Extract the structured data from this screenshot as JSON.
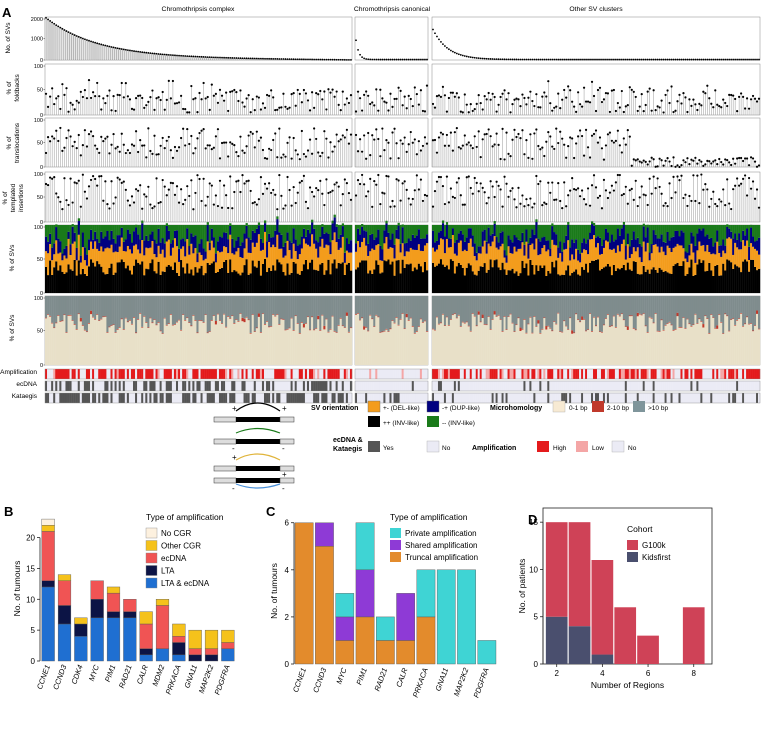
{
  "panels": {
    "A": "A",
    "B": "B",
    "C": "C",
    "D": "D"
  },
  "panelA": {
    "group_titles": [
      "Chromothripsis complex",
      "Chromothripsis canonical",
      "Other SV clusters"
    ],
    "row_labels": {
      "svs": [
        "No. of SVs"
      ],
      "foldbacks": [
        "% of",
        "foldbacks"
      ],
      "translocations": [
        "% of",
        "translocations"
      ],
      "templated": [
        "% of",
        "templated",
        "insertions"
      ],
      "orient": [
        "% of SVs"
      ],
      "microhom": [
        "% of SVs"
      ]
    },
    "svs_ticks": [
      "2000",
      "1000",
      "0"
    ],
    "pct_ticks": [
      "100",
      "50",
      "0"
    ],
    "track_labels": [
      "Amplification",
      "ecDNA",
      "Kataegis"
    ],
    "colors": {
      "del": "#f39c1c",
      "dup": "#000080",
      "tra": "#000000",
      "inv": "#1a7a1a",
      "mh_0_1": "#e8e0c8",
      "mh_2_10": "#c0392b",
      "mh_10": "#7f8c8d",
      "amp_high": "#e41a1c",
      "amp_low": "#f4a6a6",
      "amp_no": "#ebebf5",
      "yes": "#555555",
      "no": "#ebebf5"
    }
  },
  "legendA": {
    "sv_orientation_title": "SV orientation",
    "orientation_items": [
      "+- (DEL-like)",
      "-+ (DUP-like)",
      "++ (INV-like)",
      "-- (INV-like)"
    ],
    "microhomology_title": "Microhomology",
    "microhomology_items": [
      "0-1 bp",
      "2-10 bp",
      ">10 bp"
    ],
    "ecdna_title": [
      "ecDNA &",
      "Kataegis"
    ],
    "ecdna_items": [
      "Yes",
      "No"
    ],
    "amplification_title": "Amplification",
    "amplification_items": [
      "High",
      "Low",
      "No"
    ],
    "schematic_signs": [
      "+",
      "+",
      "-",
      "-",
      "+",
      "+",
      "-",
      "-"
    ]
  },
  "chart_data": [
    {
      "panel": "B",
      "type": "bar",
      "stacked": true,
      "categories": [
        "CCNE1",
        "CCND3",
        "CDK4",
        "MYC",
        "PIM1",
        "RAD21",
        "CALR",
        "MDM2",
        "PRKACA",
        "GNA11",
        "MAP2K2",
        "PDGFRA"
      ],
      "series": [
        {
          "name": "LTA & ecDNA",
          "color": "#1f6fd1",
          "values": [
            12,
            6,
            4,
            7,
            7,
            7,
            1,
            2,
            1,
            0,
            0,
            2
          ]
        },
        {
          "name": "LTA",
          "color": "#0c1445",
          "values": [
            1,
            3,
            2,
            3,
            1,
            1,
            1,
            0,
            2,
            1,
            1,
            0
          ]
        },
        {
          "name": "ecDNA",
          "color": "#f05454",
          "values": [
            8,
            4,
            0,
            3,
            3,
            2,
            4,
            7,
            1,
            1,
            1,
            1
          ]
        },
        {
          "name": "Other CGR",
          "color": "#f5c21b",
          "values": [
            1,
            1,
            1,
            0,
            1,
            0,
            2,
            1,
            2,
            3,
            3,
            2
          ]
        },
        {
          "name": "No CGR",
          "color": "#fdf1df",
          "values": [
            1,
            0,
            0,
            0,
            0,
            0,
            0,
            0,
            0,
            0,
            0,
            0
          ]
        }
      ],
      "legend_title": "Type of amplification",
      "legend_order": [
        "No CGR",
        "Other CGR",
        "ecDNA",
        "LTA",
        "LTA & ecDNA"
      ],
      "ylabel": "No. of tumours",
      "yticks": [
        0,
        5,
        10,
        15,
        20
      ],
      "ylim": [
        0,
        23.5
      ]
    },
    {
      "panel": "C",
      "type": "bar",
      "stacked": true,
      "categories": [
        "CCNE1",
        "CCND3",
        "MYC",
        "PIM1",
        "RAD21",
        "CALR",
        "PRKACA",
        "GNA11",
        "MAP2K2",
        "PDGFRA"
      ],
      "series": [
        {
          "name": "Truncal amplification",
          "color": "#e38b2c",
          "values": [
            6,
            5,
            1,
            2,
            1,
            1,
            2,
            0,
            0,
            0
          ]
        },
        {
          "name": "Shared amplification",
          "color": "#8e3ad6",
          "values": [
            0,
            1,
            1,
            2,
            0,
            2,
            0,
            0,
            0,
            0
          ]
        },
        {
          "name": "Private amplification",
          "color": "#3fd4d4",
          "values": [
            0,
            0,
            1,
            2,
            1,
            0,
            2,
            4,
            4,
            1
          ]
        }
      ],
      "legend_title": "Type of amplification",
      "legend_order": [
        "Private amplification",
        "Shared amplification",
        "Truncal amplification"
      ],
      "ylabel": "No. of tumours",
      "yticks": [
        0,
        2,
        4,
        6
      ],
      "ylim": [
        0,
        6.2
      ]
    },
    {
      "panel": "D",
      "type": "bar",
      "stacked": true,
      "categories": [
        2,
        3,
        4,
        5,
        6,
        8
      ],
      "series": [
        {
          "name": "Kidsfirst",
          "color": "#4a4f6e",
          "values": [
            5,
            4,
            1,
            0,
            0,
            0
          ]
        },
        {
          "name": "G100k",
          "color": "#cf4257",
          "values": [
            10,
            11,
            10,
            6,
            3,
            6
          ]
        }
      ],
      "legend_title": "Cohort",
      "legend_order": [
        "G100k",
        "Kidsfirst"
      ],
      "xlabel": "Number of Regions",
      "ylabel": "No. of patients",
      "xticks": [
        2,
        4,
        6,
        8
      ],
      "xlim": [
        1.4,
        8.8
      ],
      "yticks": [
        0,
        5,
        10,
        15
      ],
      "ylim": [
        0,
        16.5
      ]
    }
  ]
}
